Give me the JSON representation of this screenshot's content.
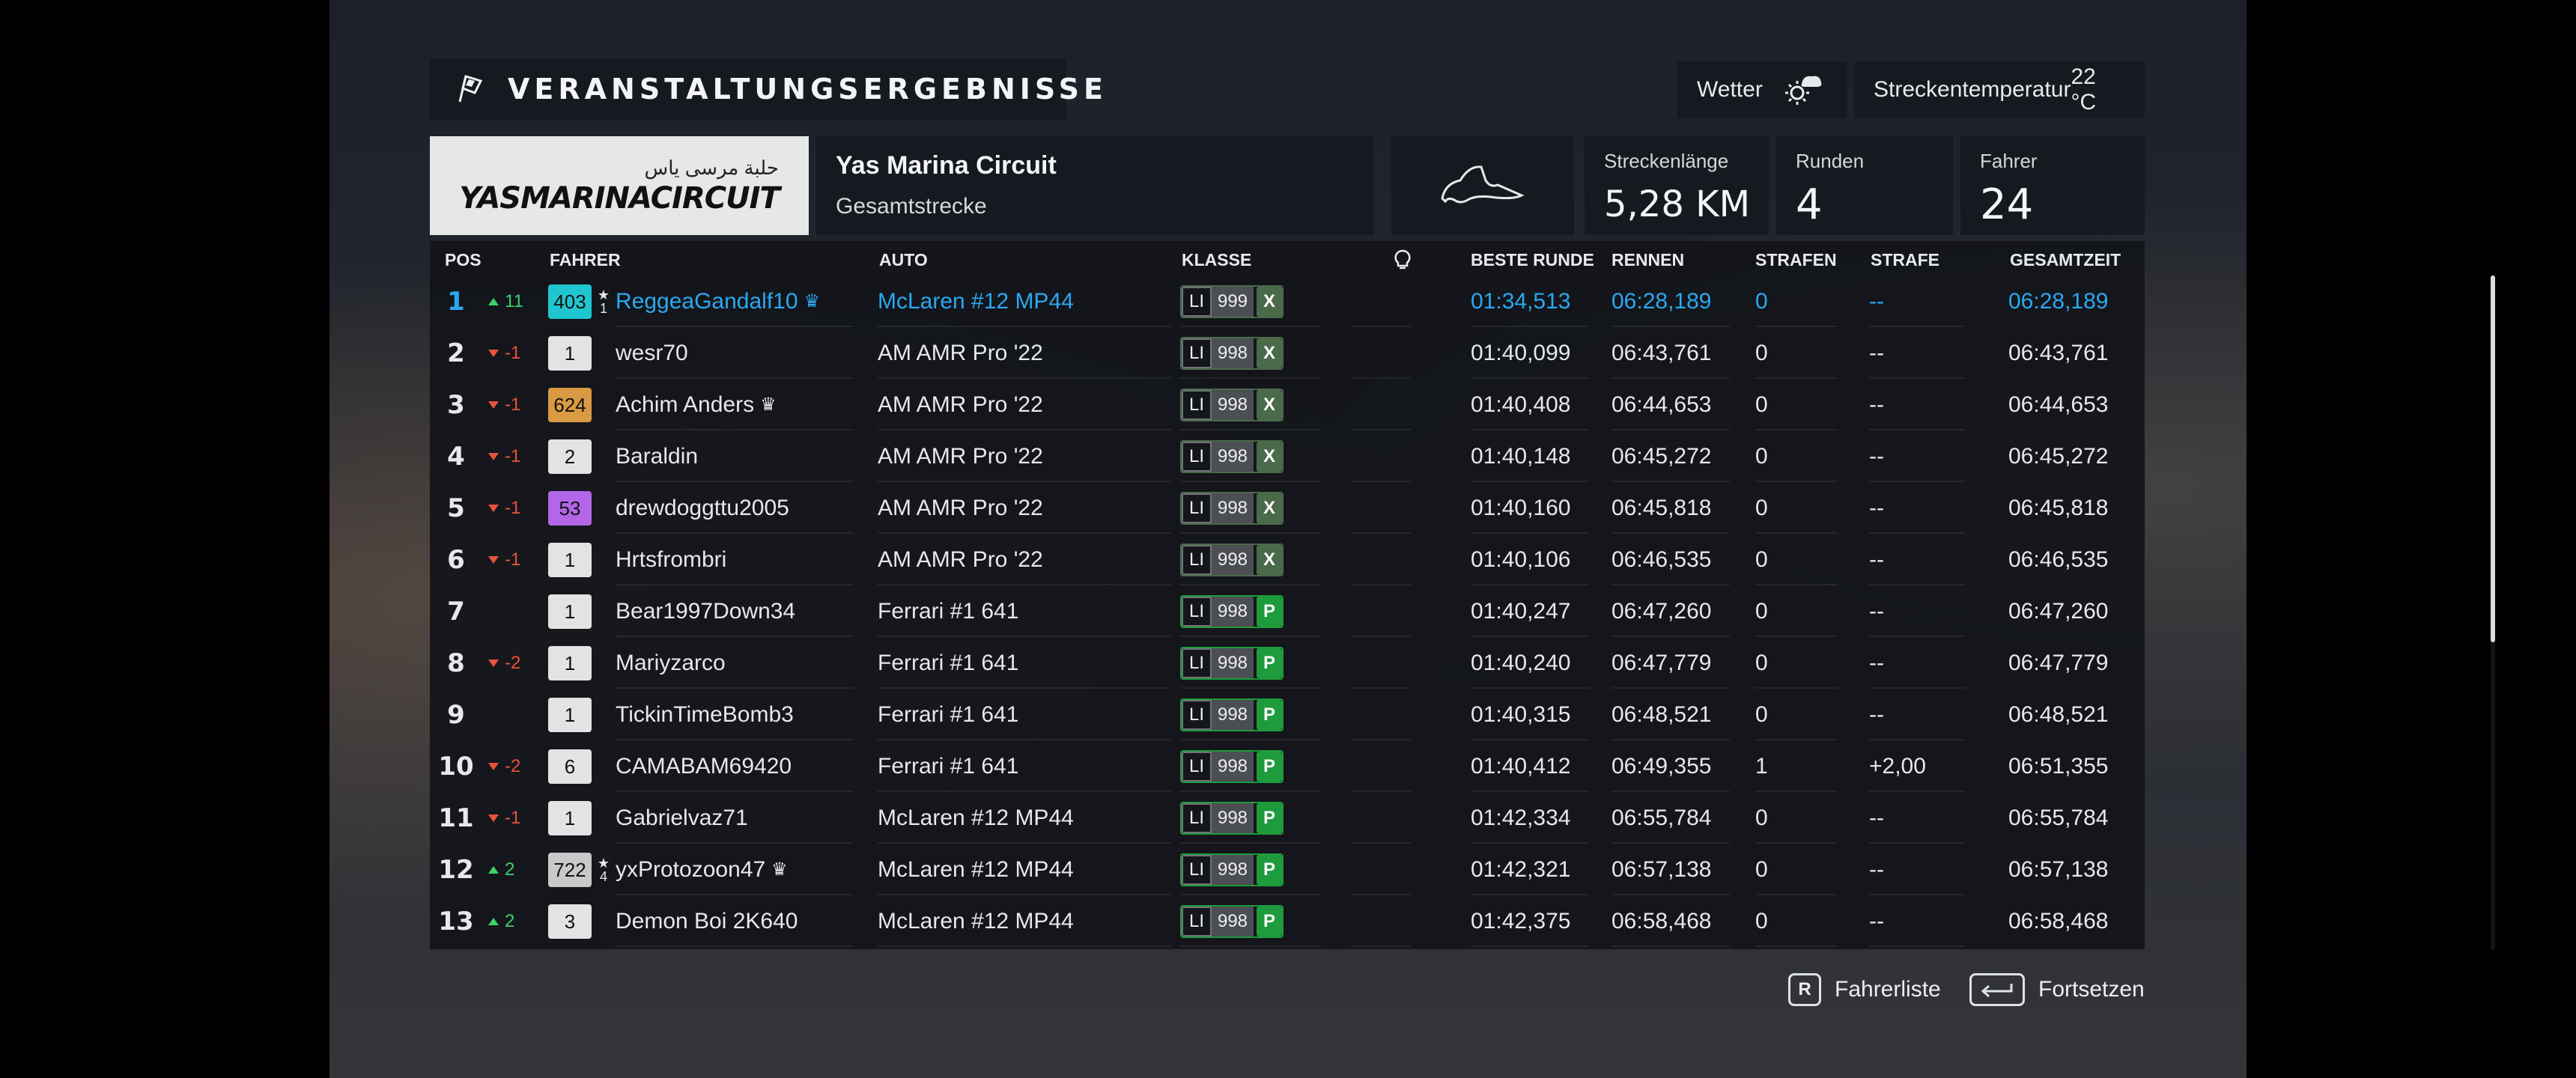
{
  "header": {
    "title": "VERANSTALTUNGSERGEBNISSE",
    "weather_label": "Wetter",
    "track_temp_label": "Streckentemperatur",
    "track_temp_value": "22 °C"
  },
  "circuit": {
    "logo_arabic": "حلبة مرسى ياس",
    "logo_text": "YASMARINACIRCUIT",
    "name": "Yas Marina Circuit",
    "layout": "Gesamtstrecke",
    "length_label": "Streckenlänge",
    "length_value": "5,28 KM",
    "laps_label": "Runden",
    "laps_value": "4",
    "drivers_label": "Fahrer",
    "drivers_value": "24"
  },
  "columns": {
    "pos": "POS",
    "driver": "FAHRER",
    "car": "AUTO",
    "class": "KLASSE",
    "best_lap": "BESTE RUNDE",
    "race": "RENNEN",
    "penalties": "STRAFEN",
    "penalty": "STRAFE",
    "total": "GESAMTZEIT"
  },
  "colors": {
    "highlight": "#2ba8f0",
    "up": "#3ed06a",
    "down": "#e8533c",
    "class_x": "#4a6a4a",
    "class_p": "#1e9b3c"
  },
  "rows": [
    {
      "pos": "1",
      "dir": "up",
      "change": "11",
      "rank": "403",
      "rank_color": "#1fc6cf",
      "star": "1",
      "driver": "ReggeaGandalf10",
      "crown": "♛",
      "car": "McLaren #12 MP44",
      "cls": "LI",
      "cls_num": "999",
      "cls_type": "X",
      "best": "01:34,513",
      "race": "06:28,189",
      "penalties": "0",
      "penalty": "--",
      "total": "06:28,189",
      "highlight": true
    },
    {
      "pos": "2",
      "dir": "down",
      "change": "-1",
      "rank": "1",
      "rank_color": "#e3e3e3",
      "star": "",
      "driver": "wesr70",
      "crown": "",
      "car": "AM AMR Pro '22",
      "cls": "LI",
      "cls_num": "998",
      "cls_type": "X",
      "best": "01:40,099",
      "race": "06:43,761",
      "penalties": "0",
      "penalty": "--",
      "total": "06:43,761"
    },
    {
      "pos": "3",
      "dir": "down",
      "change": "-1",
      "rank": "624",
      "rank_color": "#d99a43",
      "star": "",
      "driver": "Achim Anders",
      "crown": "♛",
      "car": "AM AMR Pro '22",
      "cls": "LI",
      "cls_num": "998",
      "cls_type": "X",
      "best": "01:40,408",
      "race": "06:44,653",
      "penalties": "0",
      "penalty": "--",
      "total": "06:44,653"
    },
    {
      "pos": "4",
      "dir": "down",
      "change": "-1",
      "rank": "2",
      "rank_color": "#e3e3e3",
      "star": "",
      "driver": "Baraldin",
      "crown": "",
      "car": "AM AMR Pro '22",
      "cls": "LI",
      "cls_num": "998",
      "cls_type": "X",
      "best": "01:40,148",
      "race": "06:45,272",
      "penalties": "0",
      "penalty": "--",
      "total": "06:45,272"
    },
    {
      "pos": "5",
      "dir": "down",
      "change": "-1",
      "rank": "53",
      "rank_color": "#b366e8",
      "star": "",
      "driver": "drewdoggttu2005",
      "crown": "",
      "car": "AM AMR Pro '22",
      "cls": "LI",
      "cls_num": "998",
      "cls_type": "X",
      "best": "01:40,160",
      "race": "06:45,818",
      "penalties": "0",
      "penalty": "--",
      "total": "06:45,818"
    },
    {
      "pos": "6",
      "dir": "down",
      "change": "-1",
      "rank": "1",
      "rank_color": "#e3e3e3",
      "star": "",
      "driver": "Hrtsfrombri",
      "crown": "",
      "car": "AM AMR Pro '22",
      "cls": "LI",
      "cls_num": "998",
      "cls_type": "X",
      "best": "01:40,106",
      "race": "06:46,535",
      "penalties": "0",
      "penalty": "--",
      "total": "06:46,535"
    },
    {
      "pos": "7",
      "dir": "",
      "change": "",
      "rank": "1",
      "rank_color": "#e3e3e3",
      "star": "",
      "driver": "Bear1997Down34",
      "crown": "",
      "car": "Ferrari #1 641",
      "cls": "LI",
      "cls_num": "998",
      "cls_type": "P",
      "best": "01:40,247",
      "race": "06:47,260",
      "penalties": "0",
      "penalty": "--",
      "total": "06:47,260"
    },
    {
      "pos": "8",
      "dir": "down",
      "change": "-2",
      "rank": "1",
      "rank_color": "#e3e3e3",
      "star": "",
      "driver": "Mariyzarco",
      "crown": "",
      "car": "Ferrari #1 641",
      "cls": "LI",
      "cls_num": "998",
      "cls_type": "P",
      "best": "01:40,240",
      "race": "06:47,779",
      "penalties": "0",
      "penalty": "--",
      "total": "06:47,779"
    },
    {
      "pos": "9",
      "dir": "",
      "change": "",
      "rank": "1",
      "rank_color": "#e3e3e3",
      "star": "",
      "driver": "TickinTimeBomb3",
      "crown": "",
      "car": "Ferrari #1 641",
      "cls": "LI",
      "cls_num": "998",
      "cls_type": "P",
      "best": "01:40,315",
      "race": "06:48,521",
      "penalties": "0",
      "penalty": "--",
      "total": "06:48,521"
    },
    {
      "pos": "10",
      "dir": "down",
      "change": "-2",
      "rank": "6",
      "rank_color": "#e3e3e3",
      "star": "",
      "driver": "CAMABAM69420",
      "crown": "",
      "car": "Ferrari #1 641",
      "cls": "LI",
      "cls_num": "998",
      "cls_type": "P",
      "best": "01:40,412",
      "race": "06:49,355",
      "penalties": "1",
      "penalty": "+2,00",
      "total": "06:51,355"
    },
    {
      "pos": "11",
      "dir": "down",
      "change": "-1",
      "rank": "1",
      "rank_color": "#e3e3e3",
      "star": "",
      "driver": "Gabrielvaz71",
      "crown": "",
      "car": "McLaren #12 MP44",
      "cls": "LI",
      "cls_num": "998",
      "cls_type": "P",
      "best": "01:42,334",
      "race": "06:55,784",
      "penalties": "0",
      "penalty": "--",
      "total": "06:55,784"
    },
    {
      "pos": "12",
      "dir": "up",
      "change": "2",
      "rank": "722",
      "rank_color": "#c9c9c9",
      "star": "4",
      "driver": "yxProtozoon47",
      "crown": "♛",
      "car": "McLaren #12 MP44",
      "cls": "LI",
      "cls_num": "998",
      "cls_type": "P",
      "best": "01:42,321",
      "race": "06:57,138",
      "penalties": "0",
      "penalty": "--",
      "total": "06:57,138"
    },
    {
      "pos": "13",
      "dir": "up",
      "change": "2",
      "rank": "3",
      "rank_color": "#e3e3e3",
      "star": "",
      "driver": "Demon Boi 2K640",
      "crown": "",
      "car": "McLaren #12 MP44",
      "cls": "LI",
      "cls_num": "998",
      "cls_type": "P",
      "best": "01:42,375",
      "race": "06:58,468",
      "penalties": "0",
      "penalty": "--",
      "total": "06:58,468"
    }
  ],
  "footer": {
    "driver_list_key": "R",
    "driver_list_label": "Fahrerliste",
    "continue_label": "Fortsetzen"
  }
}
